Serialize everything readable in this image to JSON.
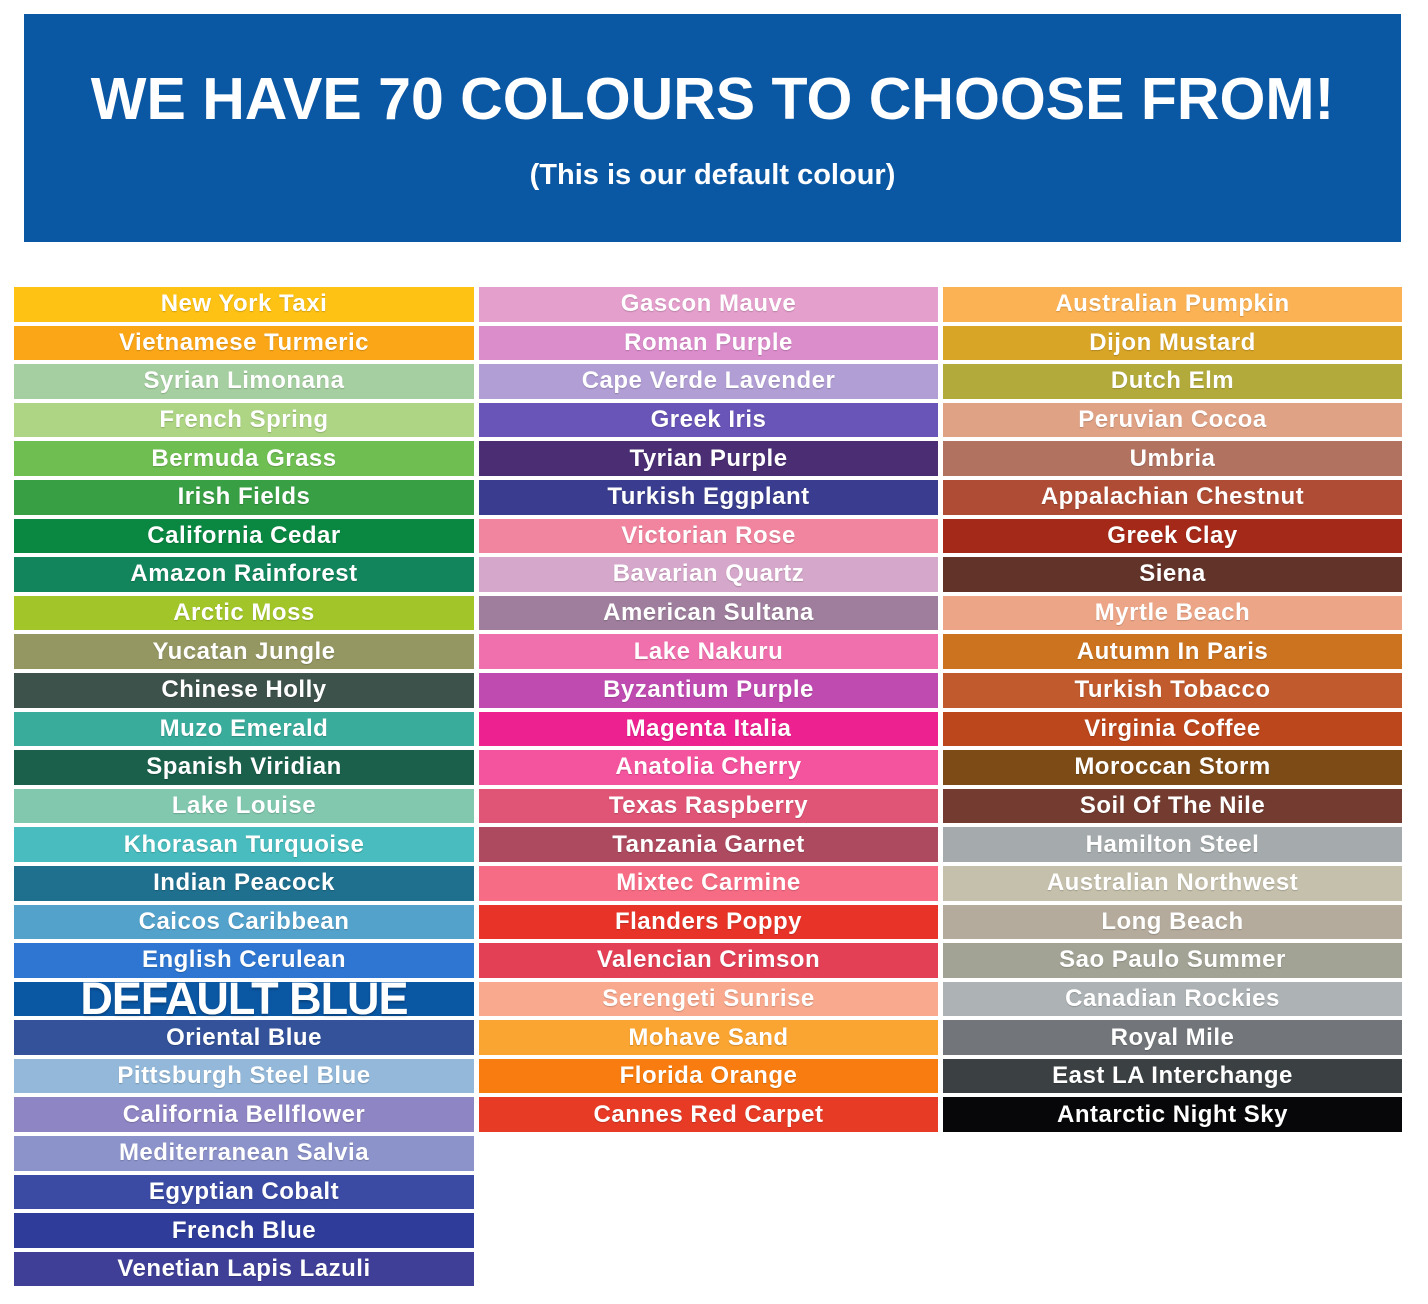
{
  "header": {
    "title": "WE HAVE 70 COLOURS TO CHOOSE FROM!",
    "subtitle": "(This is our default colour)",
    "background": "#0A57A4",
    "text_color": "#FFFFFF"
  },
  "colour_count": 70,
  "columns": [
    {
      "swatches": [
        {
          "name": "New York Taxi",
          "color": "#FEC214"
        },
        {
          "name": "Vietnamese Turmeric",
          "color": "#FAA617"
        },
        {
          "name": "Syrian Limonana",
          "color": "#A5CFA0"
        },
        {
          "name": "French Spring",
          "color": "#AED584"
        },
        {
          "name": "Bermuda Grass",
          "color": "#6FBE52"
        },
        {
          "name": "Irish Fields",
          "color": "#389F45"
        },
        {
          "name": "California Cedar",
          "color": "#0A8741"
        },
        {
          "name": "Amazon Rainforest",
          "color": "#12855C"
        },
        {
          "name": "Arctic Moss",
          "color": "#A2C629"
        },
        {
          "name": "Yucatan Jungle",
          "color": "#959763"
        },
        {
          "name": "Chinese Holly",
          "color": "#3E524C"
        },
        {
          "name": "Muzo Emerald",
          "color": "#3AAC9C"
        },
        {
          "name": "Spanish Viridian",
          "color": "#1A604B"
        },
        {
          "name": "Lake Louise",
          "color": "#82C8AF"
        },
        {
          "name": "Khorasan Turquoise",
          "color": "#48BCBE"
        },
        {
          "name": "Indian Peacock",
          "color": "#1F6F8F"
        },
        {
          "name": "Caicos Caribbean",
          "color": "#53A2CB"
        },
        {
          "name": "English Cerulean",
          "color": "#2E76D1"
        },
        {
          "name": "DEFAULT BLUE",
          "color": "#0A57A4",
          "default": true
        },
        {
          "name": "Oriental Blue",
          "color": "#33529A"
        },
        {
          "name": "Pittsburgh Steel Blue",
          "color": "#93B8D9"
        },
        {
          "name": "California Bellflower",
          "color": "#8E85C4"
        },
        {
          "name": "Mediterranean Salvia",
          "color": "#8C93CA"
        },
        {
          "name": "Egyptian Cobalt",
          "color": "#3B4BA4"
        },
        {
          "name": "French Blue",
          "color": "#2F3C9A"
        },
        {
          "name": "Venetian Lapis Lazuli",
          "color": "#3F3F97"
        }
      ]
    },
    {
      "swatches": [
        {
          "name": "Gascon Mauve",
          "color": "#E49FCC"
        },
        {
          "name": "Roman Purple",
          "color": "#DA8CCB"
        },
        {
          "name": "Cape Verde Lavender",
          "color": "#B19ED4"
        },
        {
          "name": "Greek Iris",
          "color": "#6954B7"
        },
        {
          "name": "Tyrian Purple",
          "color": "#4A2D73"
        },
        {
          "name": "Turkish Eggplant",
          "color": "#3A3D8F"
        },
        {
          "name": "Victorian Rose",
          "color": "#F1849E"
        },
        {
          "name": "Bavarian Quartz",
          "color": "#D5A7CA"
        },
        {
          "name": "American Sultana",
          "color": "#9E7E9C"
        },
        {
          "name": "Lake Nakuru",
          "color": "#F06FAD"
        },
        {
          "name": "Byzantium Purple",
          "color": "#BF4BB1"
        },
        {
          "name": "Magenta Italia",
          "color": "#EE2190"
        },
        {
          "name": "Anatolia Cherry",
          "color": "#F4539E"
        },
        {
          "name": "Texas Raspberry",
          "color": "#E05576"
        },
        {
          "name": "Tanzania Garnet",
          "color": "#AD4A5F"
        },
        {
          "name": "Mixtec Carmine",
          "color": "#F76C85"
        },
        {
          "name": "Flanders Poppy",
          "color": "#E83428"
        },
        {
          "name": "Valencian Crimson",
          "color": "#E33F55"
        },
        {
          "name": "Serengeti Sunrise",
          "color": "#F9A98D"
        },
        {
          "name": "Mohave Sand",
          "color": "#FAA431"
        },
        {
          "name": "Florida Orange",
          "color": "#F87C0F"
        },
        {
          "name": "Cannes Red Carpet",
          "color": "#E73B26"
        }
      ]
    },
    {
      "swatches": [
        {
          "name": "Australian Pumpkin",
          "color": "#FBB254"
        },
        {
          "name": "Dijon Mustard",
          "color": "#D8A526"
        },
        {
          "name": "Dutch Elm",
          "color": "#B2AA3B"
        },
        {
          "name": "Peruvian Cocoa",
          "color": "#DFA285"
        },
        {
          "name": "Umbria",
          "color": "#B17260"
        },
        {
          "name": "Appalachian Chestnut",
          "color": "#AF4C35"
        },
        {
          "name": "Greek Clay",
          "color": "#A42918"
        },
        {
          "name": "Siena",
          "color": "#623329"
        },
        {
          "name": "Myrtle Beach",
          "color": "#ECA687"
        },
        {
          "name": "Autumn In Paris",
          "color": "#CB731F"
        },
        {
          "name": "Turkish Tobacco",
          "color": "#C15B2D"
        },
        {
          "name": "Virginia Coffee",
          "color": "#BC471D"
        },
        {
          "name": "Moroccan Storm",
          "color": "#7C4B16"
        },
        {
          "name": "Soil Of The Nile",
          "color": "#743C30"
        },
        {
          "name": "Hamilton Steel",
          "color": "#A5ABAC"
        },
        {
          "name": "Australian Northwest",
          "color": "#C5C0AB"
        },
        {
          "name": "Long Beach",
          "color": "#B4AB9C"
        },
        {
          "name": "Sao Paulo Summer",
          "color": "#A2A394"
        },
        {
          "name": "Canadian Rockies",
          "color": "#ADB2B4"
        },
        {
          "name": "Royal Mile",
          "color": "#72767A"
        },
        {
          "name": "East LA Interchange",
          "color": "#3B4042"
        },
        {
          "name": "Antarctic Night Sky",
          "color": "#070709"
        }
      ]
    }
  ]
}
